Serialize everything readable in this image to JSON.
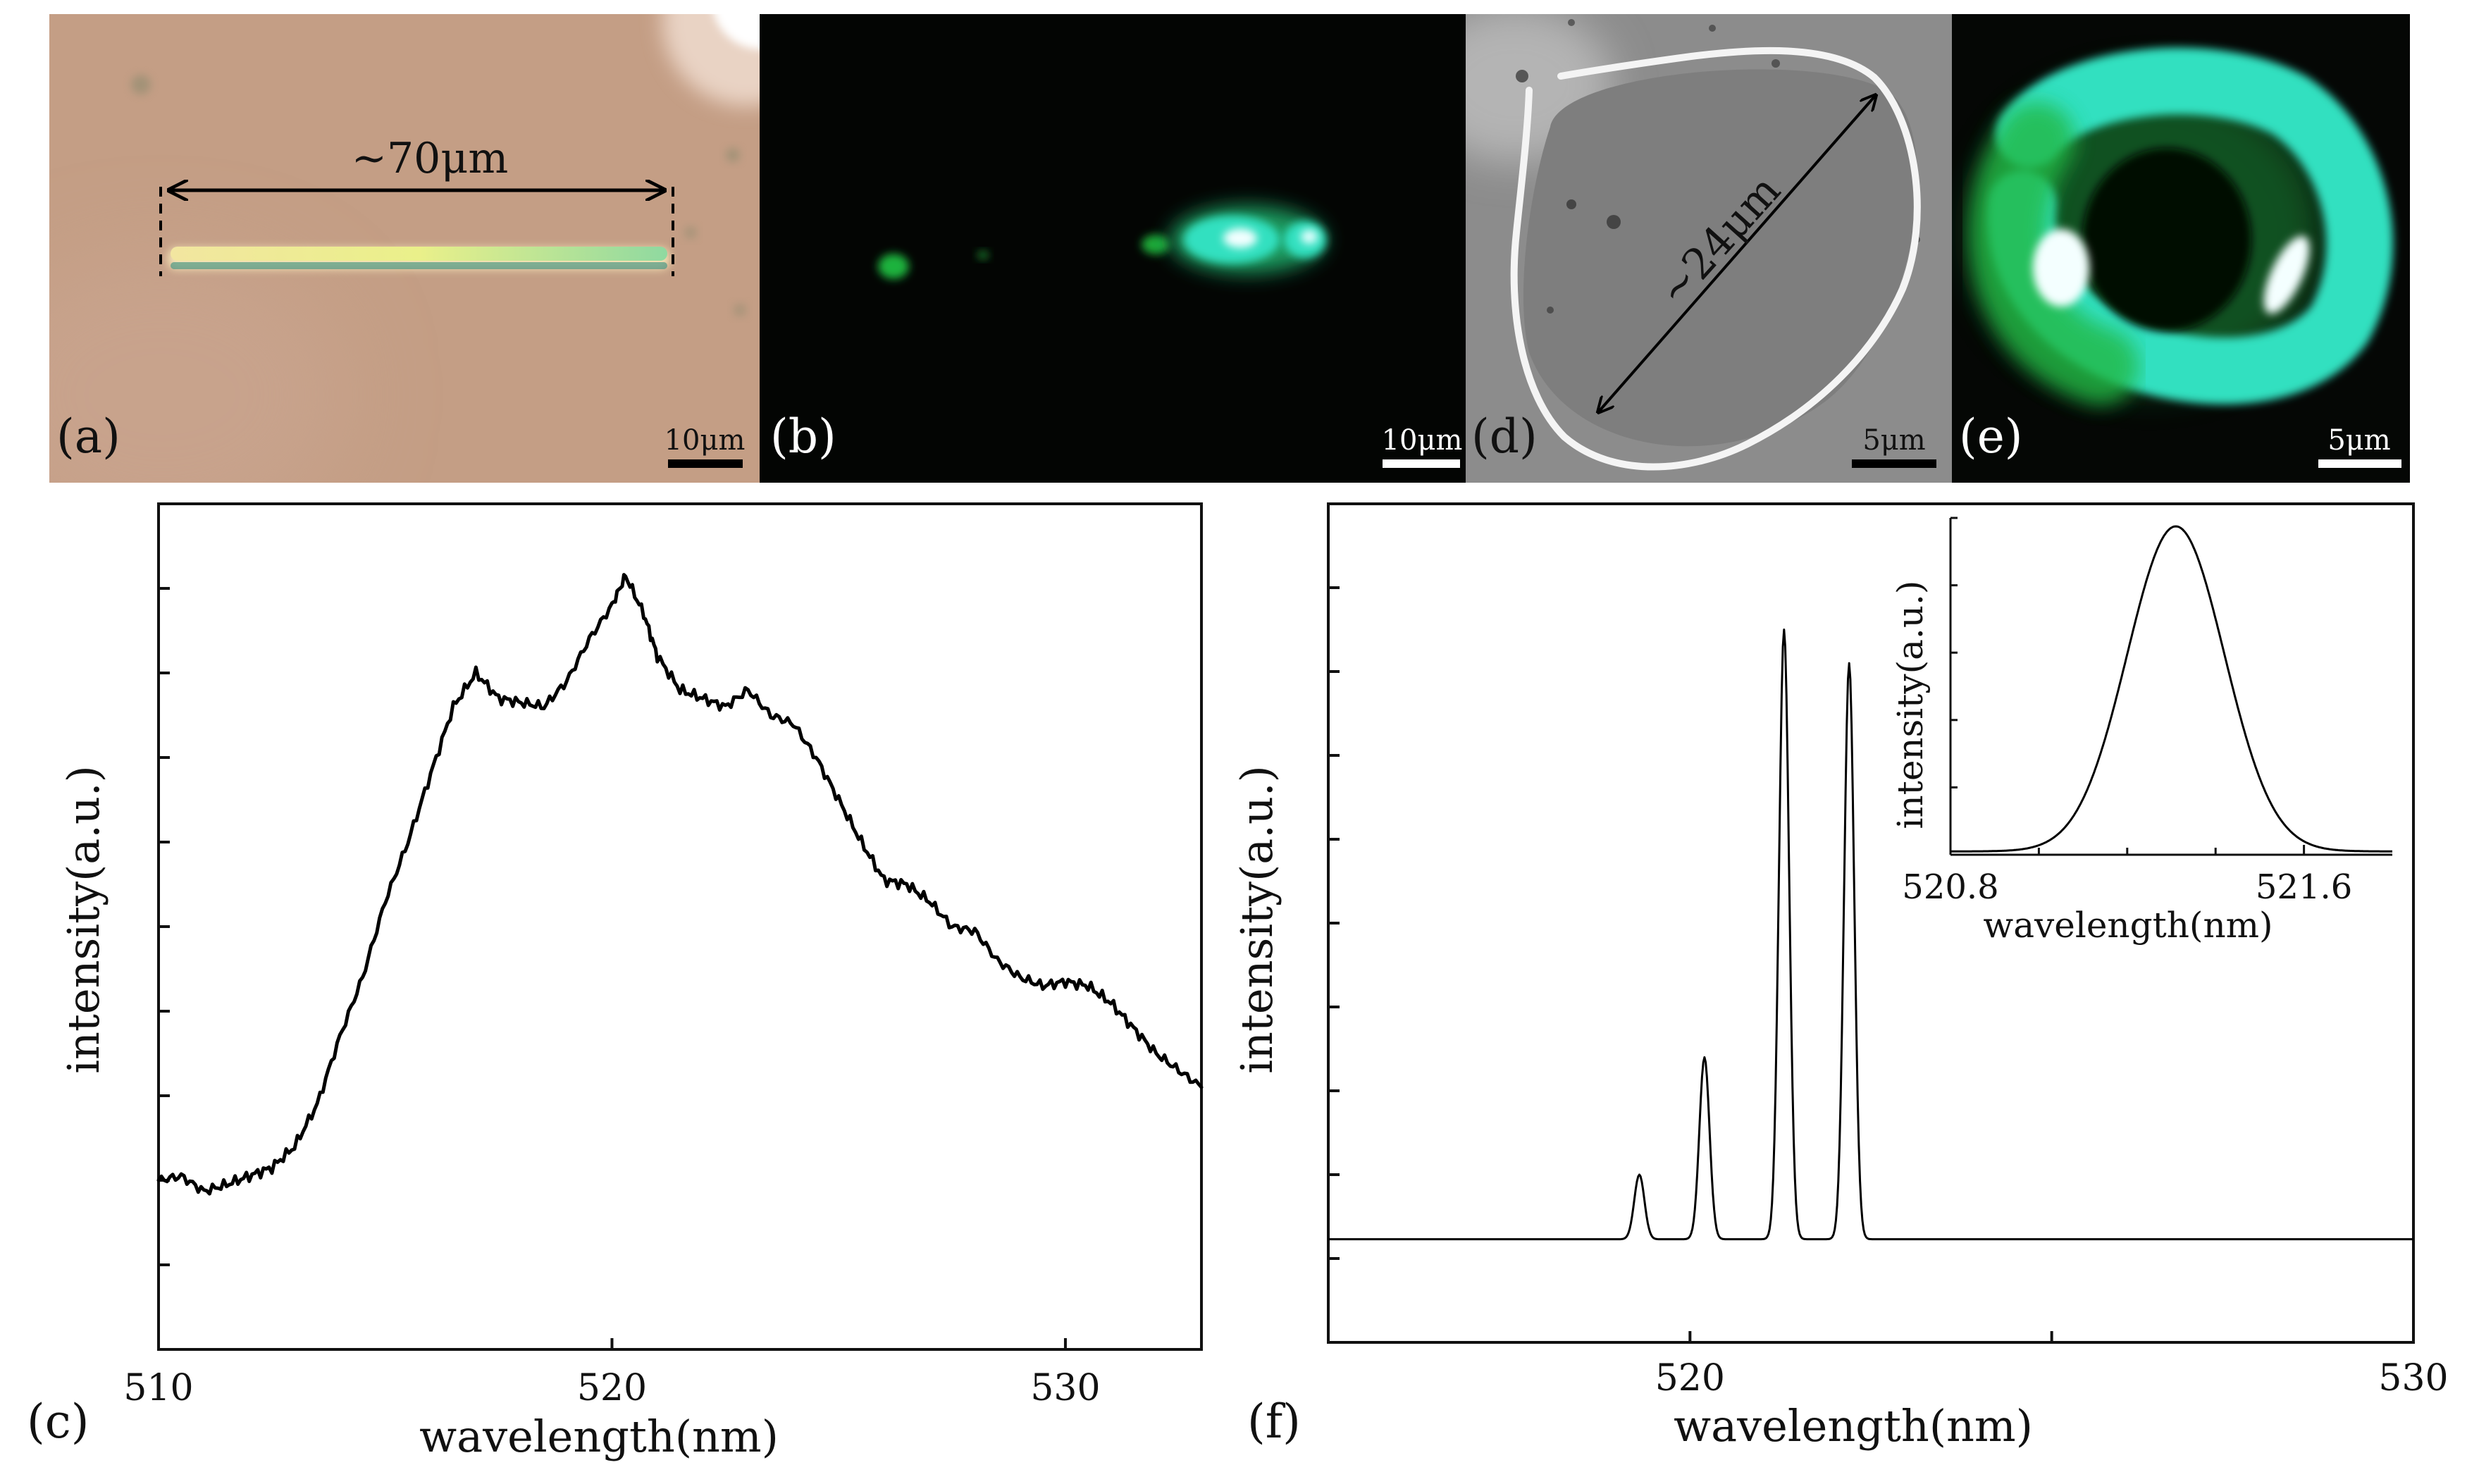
{
  "images": [
    {
      "id": "a",
      "label": "(a)",
      "scalebar": "10μm",
      "annotation": "~70μm"
    },
    {
      "id": "b",
      "label": "(b)",
      "scalebar": "10μm"
    },
    {
      "id": "d",
      "label": "(d)",
      "scalebar": "5μm",
      "annotation": "~24μm"
    },
    {
      "id": "e",
      "label": "(e)",
      "scalebar": "5μm"
    }
  ],
  "colors": {
    "micrograph_a_bg": "#C49E85",
    "fluorescence": "#30E0C0",
    "glow_green": "#1FA83A",
    "sem_bg": "#8C8C8C"
  },
  "chart_data": [
    {
      "id": "c",
      "panel_label": "(c)",
      "type": "line",
      "title": "",
      "xlabel": "wavelength(nm)",
      "ylabel": "intensity(a.u.)",
      "xlim": [
        510,
        533
      ],
      "ylim": [
        0,
        1
      ],
      "xticks": [
        510,
        520,
        530
      ],
      "xtick_labels": [
        "510",
        "520",
        "530"
      ],
      "yticks": [
        0.1,
        0.2,
        0.3,
        0.4,
        0.5,
        0.6,
        0.7,
        0.8,
        0.9,
        1.0
      ],
      "grid": false,
      "x": [
        510.0,
        510.5,
        511.0,
        511.5,
        512.0,
        512.5,
        513.0,
        513.5,
        514.0,
        514.5,
        515.0,
        515.5,
        516.0,
        516.5,
        517.0,
        517.5,
        518.0,
        518.5,
        519.0,
        519.5,
        520.0,
        520.3,
        520.7,
        521.0,
        521.5,
        522.0,
        522.5,
        523.0,
        523.5,
        524.0,
        524.5,
        525.0,
        525.5,
        526.0,
        526.5,
        527.0,
        527.5,
        528.0,
        528.5,
        529.0,
        529.5,
        530.0,
        530.5,
        531.0,
        531.5,
        532.0,
        532.5,
        533.0
      ],
      "y": [
        0.2,
        0.205,
        0.187,
        0.195,
        0.205,
        0.215,
        0.24,
        0.29,
        0.37,
        0.44,
        0.53,
        0.6,
        0.68,
        0.76,
        0.8,
        0.77,
        0.765,
        0.76,
        0.79,
        0.84,
        0.88,
        0.915,
        0.87,
        0.82,
        0.78,
        0.77,
        0.76,
        0.78,
        0.75,
        0.74,
        0.7,
        0.65,
        0.6,
        0.555,
        0.55,
        0.53,
        0.5,
        0.495,
        0.46,
        0.44,
        0.43,
        0.435,
        0.43,
        0.41,
        0.38,
        0.35,
        0.33,
        0.31
      ]
    },
    {
      "id": "f",
      "panel_label": "(f)",
      "type": "line",
      "title": "",
      "xlabel": "wavelength(nm)",
      "ylabel": "intensity(a.u.)",
      "xlim": [
        515,
        530
      ],
      "ylim": [
        0,
        1
      ],
      "xticks": [
        515,
        520,
        525,
        530
      ],
      "xtick_labels": [
        "",
        "520",
        "",
        "530"
      ],
      "yticks": [
        0.1,
        0.2,
        0.3,
        0.4,
        0.5,
        0.6,
        0.7,
        0.8,
        0.9,
        1.0
      ],
      "grid": false,
      "baseline": 0.123,
      "peaks": [
        {
          "center": 519.3,
          "height": 0.2,
          "width": 0.07
        },
        {
          "center": 520.2,
          "height": 0.34,
          "width": 0.07
        },
        {
          "center": 521.3,
          "height": 0.85,
          "width": 0.07
        },
        {
          "center": 522.2,
          "height": 0.81,
          "width": 0.07
        }
      ],
      "inset": {
        "type": "line",
        "xlabel": "wavelength(nm)",
        "ylabel": "intensity(a.u.)",
        "xlim": [
          520.8,
          521.8
        ],
        "ylim": [
          0,
          1
        ],
        "xtick_labels": [
          "520.8",
          "521.6"
        ],
        "xticks": [
          520.8,
          521.6
        ],
        "minor_xticks": [
          521.0,
          521.2,
          521.4
        ],
        "yticks": [
          0.2,
          0.4,
          0.6,
          0.8,
          1.0
        ],
        "peak": {
          "center": 521.31,
          "height": 0.975,
          "width": 0.11,
          "baseline": 0.01
        }
      }
    }
  ]
}
